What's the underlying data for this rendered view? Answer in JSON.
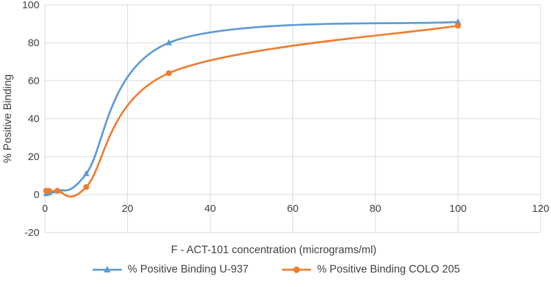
{
  "chart_data": {
    "type": "line",
    "title": "",
    "xlabel": "F - ACT-101 concentration (micrograms/ml)",
    "ylabel": "% Positive Binding",
    "xlim": [
      0,
      120
    ],
    "ylim": [
      -20,
      100
    ],
    "x_ticks": [
      0,
      20,
      40,
      60,
      80,
      100,
      120
    ],
    "y_ticks": [
      -20,
      0,
      20,
      40,
      60,
      80,
      100
    ],
    "grid": true,
    "line_style": "smooth",
    "legend_position": "bottom",
    "series": [
      {
        "name": "% Positive Binding U-937",
        "color": "#5B9BD5",
        "marker": "triangle",
        "points": [
          [
            0.3,
            0.5
          ],
          [
            1,
            1
          ],
          [
            3,
            2
          ],
          [
            10,
            11
          ],
          [
            30,
            80
          ],
          [
            100,
            91
          ]
        ]
      },
      {
        "name": "% Positive Binding COLO 205",
        "color": "#ED7D31",
        "marker": "circle",
        "points": [
          [
            0.3,
            2
          ],
          [
            1,
            2
          ],
          [
            3,
            2
          ],
          [
            10,
            4
          ],
          [
            30,
            64
          ],
          [
            100,
            89
          ]
        ]
      }
    ],
    "colors": {
      "grid": "#D9D9D9",
      "text": "#404040"
    }
  }
}
